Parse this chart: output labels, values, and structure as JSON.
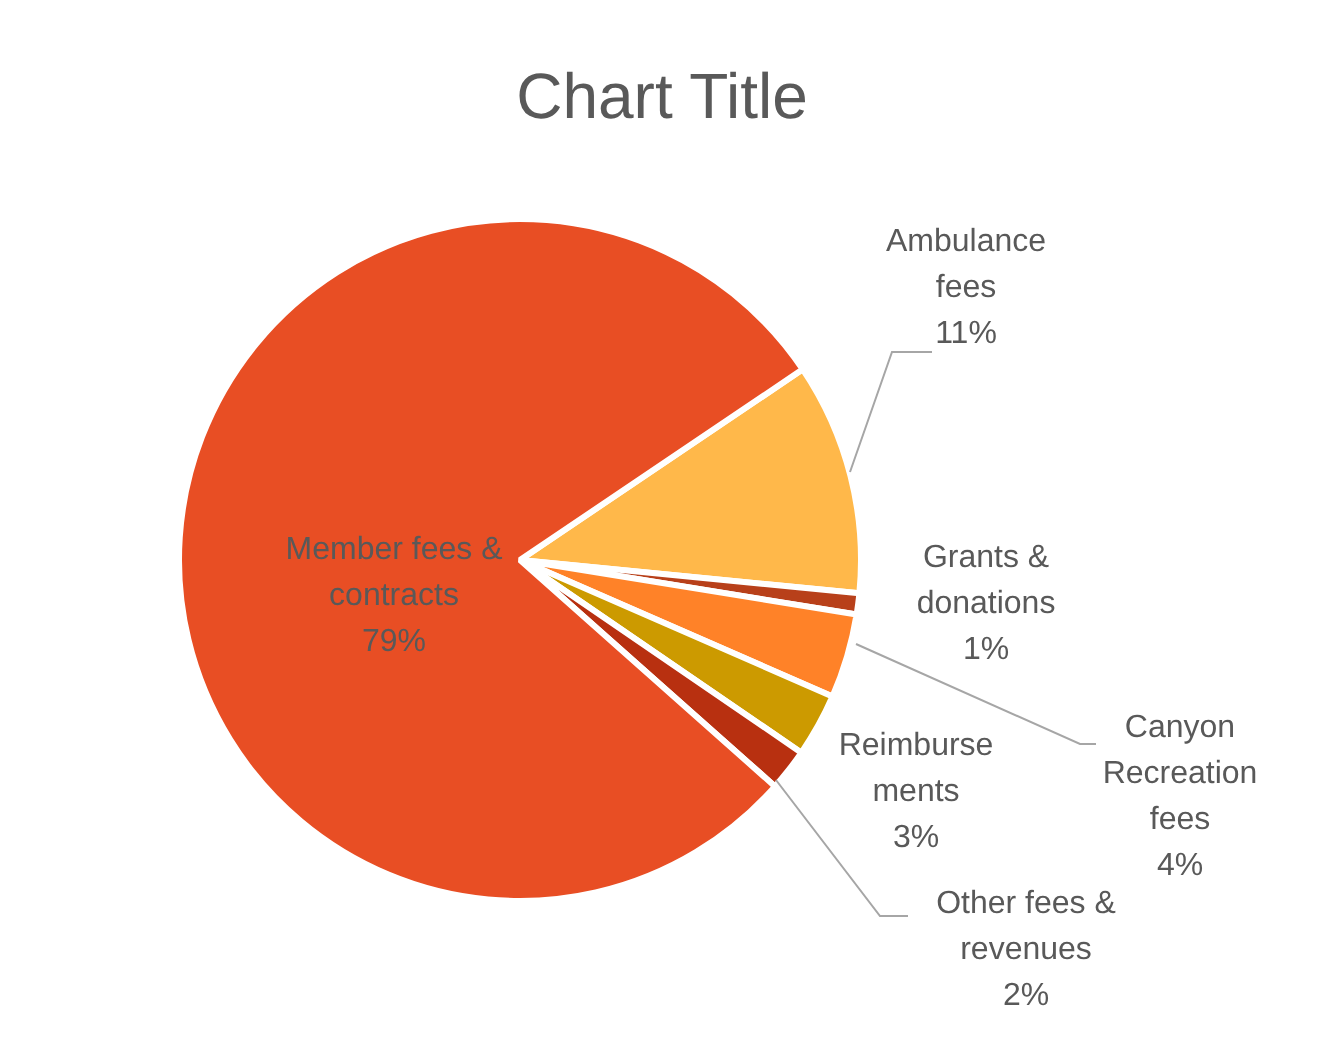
{
  "chart_data": {
    "type": "pie",
    "title": "Chart Title",
    "categories": [
      "Ambulance fees",
      "Grants & donations",
      "Canyon Recreation fees",
      "Reimbursements",
      "Other fees & revenues",
      "Member fees & contracts"
    ],
    "values": [
      11,
      1,
      4,
      3,
      2,
      79
    ],
    "value_labels": [
      "11%",
      "1%",
      "4%",
      "3%",
      "2%",
      "79%"
    ],
    "colors": [
      "#ffb84a",
      "#b8401a",
      "#ff8228",
      "#cc9a00",
      "#b83010",
      "#e84e24"
    ],
    "legend": false
  }
}
